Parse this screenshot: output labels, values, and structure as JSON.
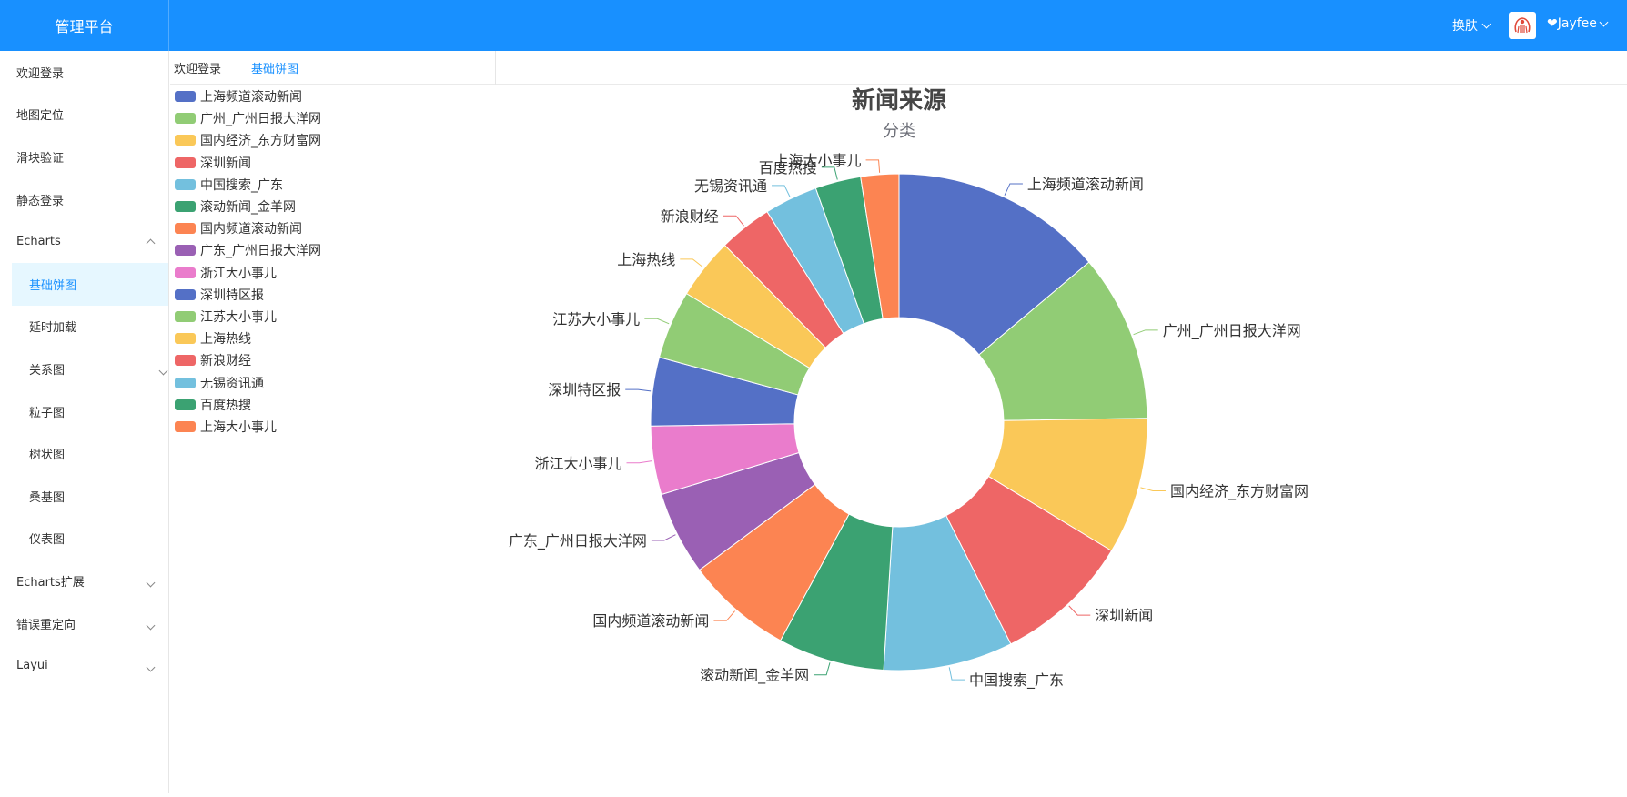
{
  "app": {
    "title": "管理平台"
  },
  "topbar": {
    "skin_label": "换肤",
    "user_label": "❤Jayfee"
  },
  "sidebar": {
    "items": [
      {
        "label": "欢迎登录"
      },
      {
        "label": "地图定位"
      },
      {
        "label": "滑块验证"
      },
      {
        "label": "静态登录"
      },
      {
        "label": "Echarts"
      },
      {
        "label": "基础饼图"
      },
      {
        "label": "延时加载"
      },
      {
        "label": "关系图"
      },
      {
        "label": "粒子图"
      },
      {
        "label": "树状图"
      },
      {
        "label": "桑基图"
      },
      {
        "label": "仪表图"
      },
      {
        "label": "Echarts扩展"
      },
      {
        "label": "错误重定向"
      },
      {
        "label": "Layui"
      }
    ]
  },
  "tabs": [
    {
      "label": "欢迎登录"
    },
    {
      "label": "基础饼图"
    }
  ],
  "chart_data": {
    "type": "pie",
    "title": "新闻来源",
    "subtitle": "分类",
    "donut": true,
    "legend_position": "top-left",
    "slices": [
      {
        "name": "上海频道滚动新闻",
        "value": 14,
        "color": "#5470c6"
      },
      {
        "name": "广州_广州日报大洋网",
        "value": 11,
        "color": "#91cc75"
      },
      {
        "name": "国内经济_东方财富网",
        "value": 9,
        "color": "#fac858"
      },
      {
        "name": "深圳新闻",
        "value": 9,
        "color": "#ee6666"
      },
      {
        "name": "中国搜索_广东",
        "value": 8.5,
        "color": "#73c0de"
      },
      {
        "name": "滚动新闻_金羊网",
        "value": 7,
        "color": "#3ba272"
      },
      {
        "name": "国内频道滚动新闻",
        "value": 7,
        "color": "#fc8452"
      },
      {
        "name": "广东_广州日报大洋网",
        "value": 5.5,
        "color": "#9a60b4"
      },
      {
        "name": "浙江大小事儿",
        "value": 4.5,
        "color": "#ea7ccc"
      },
      {
        "name": "深圳特区报",
        "value": 4.5,
        "color": "#5470c6"
      },
      {
        "name": "江苏大小事儿",
        "value": 4.5,
        "color": "#91cc75"
      },
      {
        "name": "上海热线",
        "value": 4,
        "color": "#fac858"
      },
      {
        "name": "新浪财经",
        "value": 3.5,
        "color": "#ee6666"
      },
      {
        "name": "无锡资讯通",
        "value": 3.5,
        "color": "#73c0de"
      },
      {
        "name": "百度热搜",
        "value": 3,
        "color": "#3ba272"
      },
      {
        "name": "上海大小事儿",
        "value": 2.5,
        "color": "#fc8452"
      }
    ]
  }
}
